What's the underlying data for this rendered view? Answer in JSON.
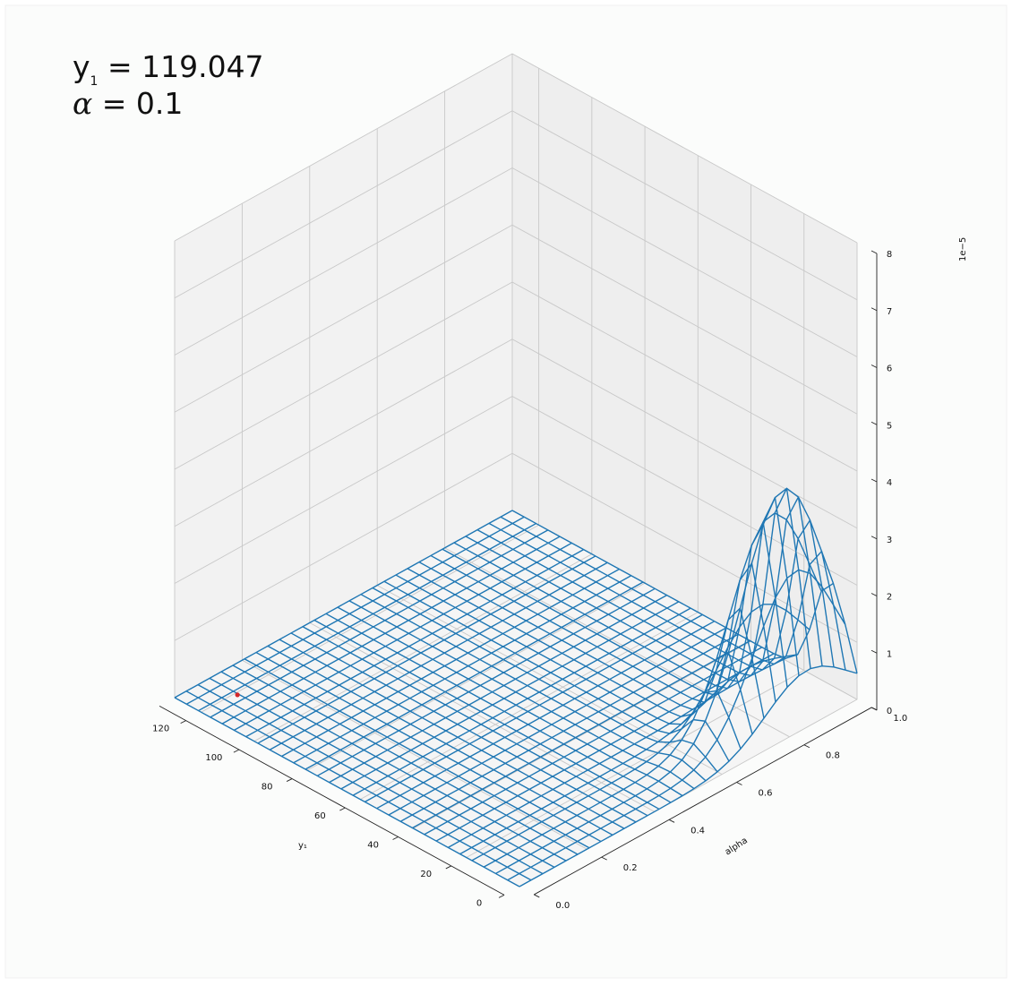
{
  "chart_data": {
    "type": "surface3d",
    "title": "",
    "annotations": {
      "line1": {
        "symbol": "y",
        "subscript": "1",
        "equals": "= 119.047"
      },
      "line2": {
        "symbol": "α",
        "equals": "= 0.1"
      }
    },
    "x_axis": {
      "label": "y₁",
      "range": [
        0,
        130
      ],
      "ticks": [
        "0",
        "20",
        "40",
        "60",
        "80",
        "100",
        "120"
      ]
    },
    "y_axis": {
      "label": "alpha",
      "range": [
        0,
        1.0
      ],
      "ticks": [
        "0.0",
        "0.2",
        "0.4",
        "0.6",
        "0.8",
        "1.0"
      ]
    },
    "z_axis": {
      "label": "",
      "offset_text": "1e−5",
      "range": [
        0,
        8
      ],
      "ticks": [
        "0",
        "1",
        "2",
        "3",
        "4",
        "5",
        "6",
        "7",
        "8"
      ]
    },
    "surface": {
      "description": "wireframe of density f(y1, alpha), 30x30 grid",
      "grid_n": 30,
      "peak": {
        "y1": 10,
        "alpha": 0.85,
        "z": 4.0
      },
      "spread": {
        "y1": 6,
        "alpha": 0.12
      },
      "zero_level": 0
    },
    "point": {
      "y1": 119.047,
      "alpha": 0.1,
      "z": 0
    },
    "grid": true,
    "colors": {
      "wire": "#1f77b4",
      "point": "#d62728",
      "pane_back": "#f2f2f2",
      "pane_floor": "#f5f5f5",
      "grid_line": "#c8c8c8"
    }
  }
}
